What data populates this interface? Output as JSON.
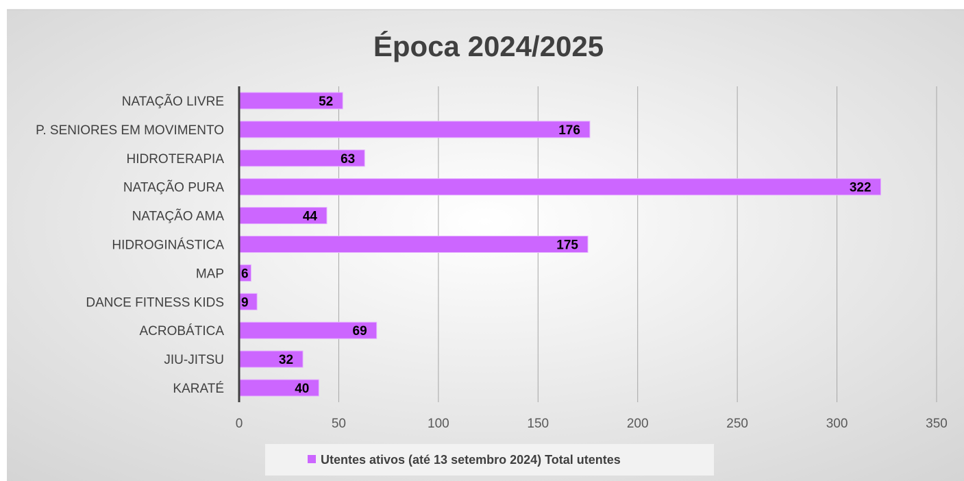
{
  "chart_data": {
    "type": "bar",
    "orientation": "horizontal",
    "title": "Época 2024/2025",
    "categories": [
      "NATAÇÃO LIVRE",
      "P. SENIORES EM MOVIMENTO",
      "HIDROTERAPIA",
      "NATAÇÃO PURA",
      "NATAÇÃO AMA",
      "HIDROGINÁSTICA",
      "MAP",
      "DANCE FITNESS KIDS",
      "ACROBÁTICA",
      "JIU-JITSU",
      "KARATÉ"
    ],
    "series": [
      {
        "name": "Utentes ativos (até 13 setembro 2024) Total utentes",
        "values": [
          52,
          176,
          63,
          322,
          44,
          175,
          6,
          9,
          69,
          32,
          40
        ],
        "color": "#cc66ff"
      }
    ],
    "xlim": [
      0,
      350
    ],
    "x_ticks": [
      0,
      50,
      100,
      150,
      200,
      250,
      300,
      350
    ],
    "grid": "vertical",
    "legend": "bottom-center",
    "data_labels": true,
    "colors": {
      "bar": "#cc66ff",
      "bar_edge": "#e6b3ff",
      "background_center": "#ffffff",
      "background_edge": "#d4d4d4"
    }
  }
}
